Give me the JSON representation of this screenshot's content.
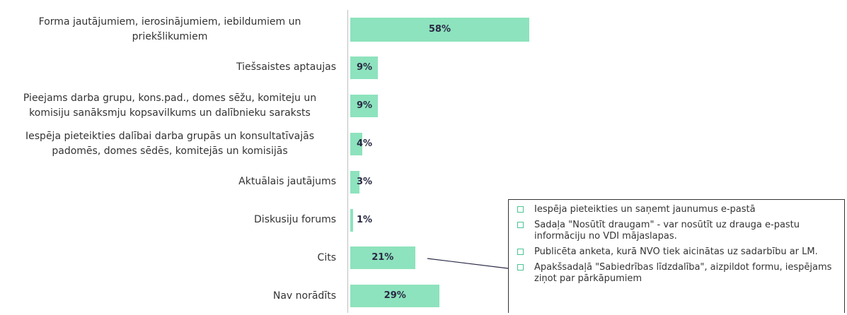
{
  "chart_data": {
    "type": "bar",
    "orientation": "horizontal",
    "color": "#8de3bd",
    "categories": [
      "Forma jautājumiem, ierosinājumiem, iebildumiem un priekšlikumiem",
      "Tiešsaistes aptaujas",
      "Pieejams darba grupu, kons.pad., domes sēžu, komiteju un komisiju sanāksmju kopsavilkums un dalībnieku saraksts",
      "Iespēja pieteikties dalībai darba grupās un konsultatīvajās padomēs, domes sēdēs, komitejās un komisijās",
      "Aktuālais jautājums",
      "Diskusiju forums",
      "Cits",
      "Nav norādīts"
    ],
    "values": [
      58,
      9,
      9,
      4,
      3,
      1,
      21,
      29
    ],
    "value_labels": [
      "58%",
      "9%",
      "9%",
      "4%",
      "3%",
      "1%",
      "21%",
      "29%"
    ],
    "callout": [
      "Iespēja pieteikties un saņemt jaunumus e-pastā",
      "Sadaļa \"Nosūtīt draugam\" - var nosūtīt uz drauga e-pastu informāciju no VDI mājaslapas.",
      "Publicēta anketa, kurā NVO tiek aicinātas uz sadarbību ar LM.",
      "Apakšsadaļā \"Sabiedrības līdzdalība\", aizpildot formu, iespējams ziņot par pārkāpumiem"
    ]
  }
}
